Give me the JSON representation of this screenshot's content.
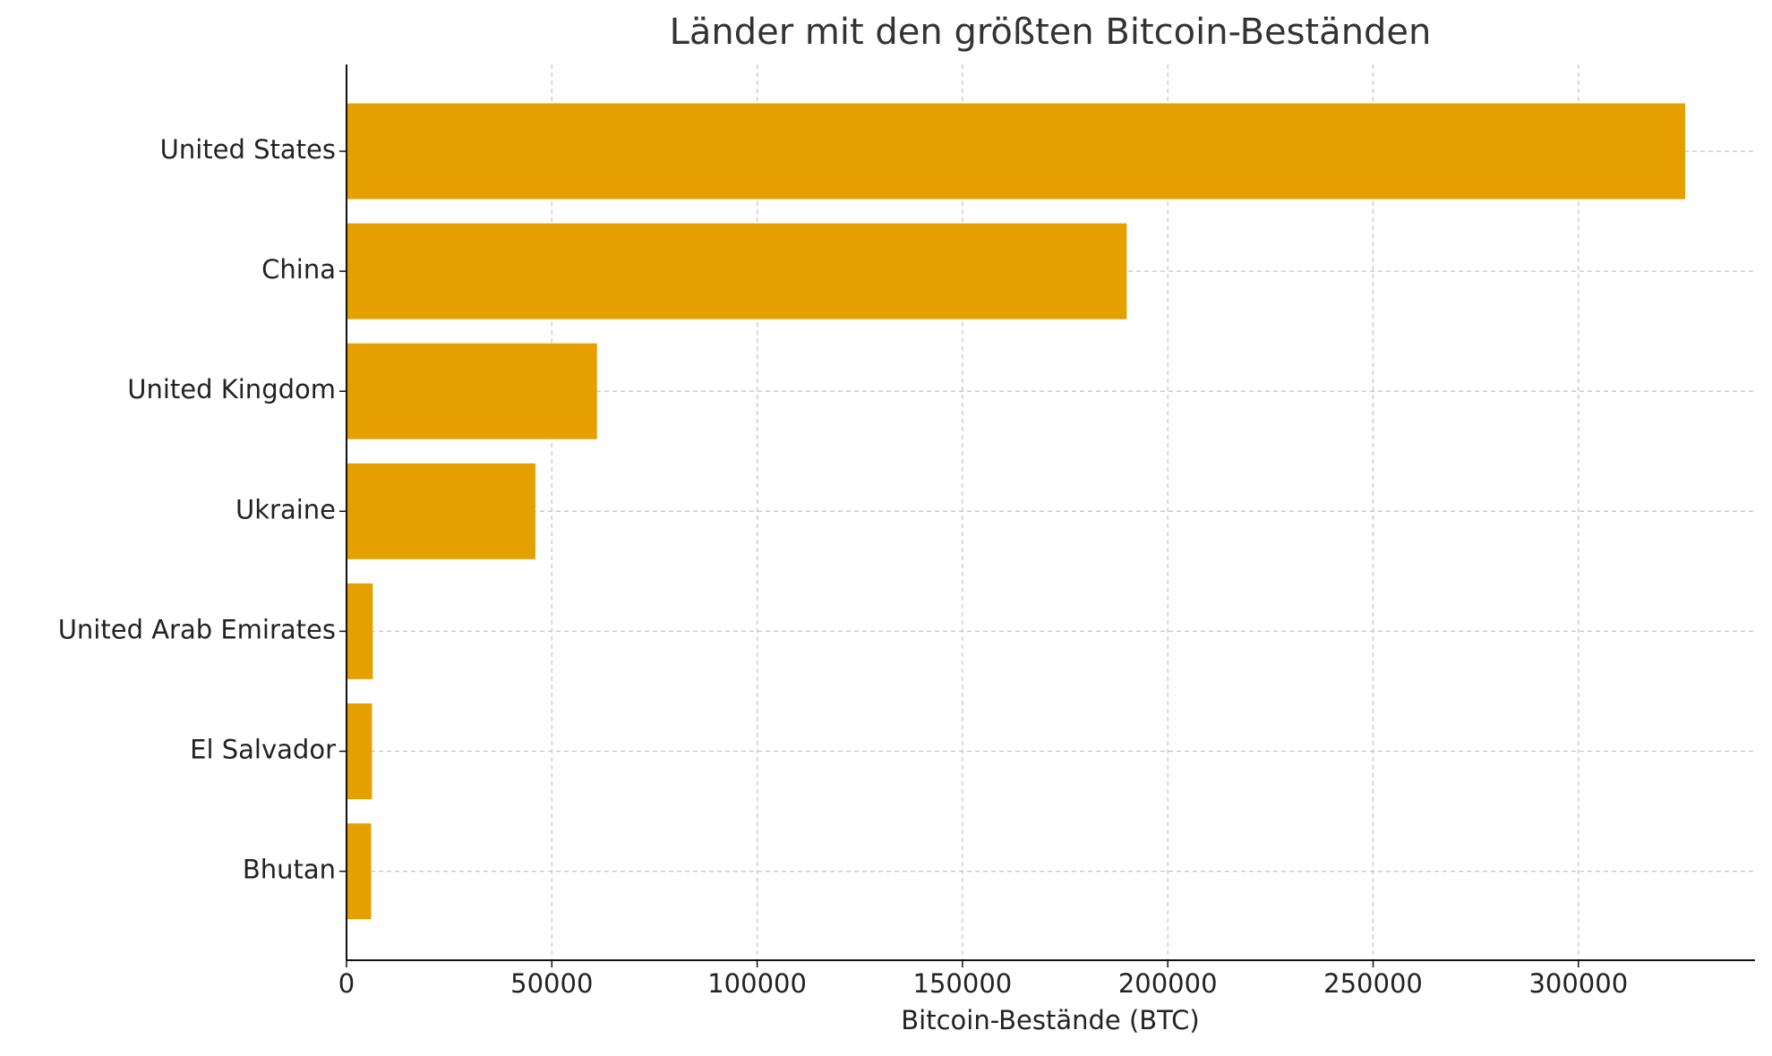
{
  "chart_data": {
    "type": "bar",
    "orientation": "horizontal",
    "title": "Länder mit den größten Bitcoin-Beständen",
    "xlabel": "Bitcoin-Bestände (BTC)",
    "categories": [
      "United States",
      "China",
      "United Kingdom",
      "Ukraine",
      "United Arab Emirates",
      "El Salvador",
      "Bhutan"
    ],
    "values": [
      326000,
      190000,
      61000,
      46000,
      6400,
      6200,
      6000
    ],
    "color": "#e5a000",
    "xlim": [
      0,
      343000
    ],
    "xticks": [
      0,
      50000,
      100000,
      150000,
      200000,
      250000,
      300000
    ],
    "grid": true
  }
}
